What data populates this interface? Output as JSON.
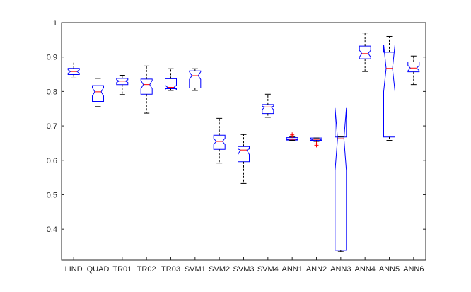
{
  "chart_data": {
    "type": "boxplot",
    "notched": true,
    "ylim": [
      0.31,
      1.0
    ],
    "yticks": [
      0.4,
      0.5,
      0.6,
      0.7,
      0.8,
      0.9,
      1
    ],
    "ytick_labels": [
      "0.4",
      "0.5",
      "0.6",
      "0.7",
      "0.8",
      "0.9",
      "1"
    ],
    "grid": false,
    "colors": {
      "box": "#0000ff",
      "median": "#ff0000",
      "whisker": "#000000",
      "outlier": "#ff0000"
    },
    "categories": [
      "LIND",
      "QUAD",
      "TR01",
      "TR02",
      "TR03",
      "SVM1",
      "SVM2",
      "SVM3",
      "SVM4",
      "ANN1",
      "ANN2",
      "ANN3",
      "ANN4",
      "ANN5",
      "ANN6"
    ],
    "boxes": [
      {
        "whisker_low": 0.839,
        "q1": 0.849,
        "notch_low": 0.853,
        "median": 0.858,
        "notch_high": 0.863,
        "q3": 0.867,
        "whisker_high": 0.886,
        "outliers": []
      },
      {
        "whisker_low": 0.756,
        "q1": 0.771,
        "notch_low": 0.787,
        "median": 0.799,
        "notch_high": 0.811,
        "q3": 0.817,
        "whisker_high": 0.838,
        "outliers": []
      },
      {
        "whisker_low": 0.791,
        "q1": 0.82,
        "notch_low": 0.826,
        "median": 0.83,
        "notch_high": 0.834,
        "q3": 0.838,
        "whisker_high": 0.847,
        "outliers": []
      },
      {
        "whisker_low": 0.737,
        "q1": 0.792,
        "notch_low": 0.808,
        "median": 0.82,
        "notch_high": 0.832,
        "q3": 0.836,
        "whisker_high": 0.874,
        "outliers": []
      },
      {
        "whisker_low": 0.803,
        "q1": 0.808,
        "notch_low": 0.806,
        "median": 0.812,
        "notch_high": 0.818,
        "q3": 0.837,
        "whisker_high": 0.866,
        "outliers": []
      },
      {
        "whisker_low": 0.803,
        "q1": 0.81,
        "notch_low": 0.835,
        "median": 0.846,
        "notch_high": 0.857,
        "q3": 0.86,
        "whisker_high": 0.866,
        "outliers": []
      },
      {
        "whisker_low": 0.592,
        "q1": 0.632,
        "notch_low": 0.646,
        "median": 0.655,
        "notch_high": 0.664,
        "q3": 0.673,
        "whisker_high": 0.722,
        "outliers": []
      },
      {
        "whisker_low": 0.533,
        "q1": 0.596,
        "notch_low": 0.617,
        "median": 0.63,
        "notch_high": 0.633,
        "q3": 0.64,
        "whisker_high": 0.675,
        "outliers": []
      },
      {
        "whisker_low": 0.725,
        "q1": 0.736,
        "notch_low": 0.747,
        "median": 0.755,
        "notch_high": 0.757,
        "q3": 0.762,
        "whisker_high": 0.792,
        "outliers": []
      },
      {
        "whisker_low": 0.658,
        "q1": 0.659,
        "notch_low": 0.66,
        "median": 0.661,
        "notch_high": 0.663,
        "q3": 0.666,
        "whisker_high": 0.668,
        "outliers": [
          0.671,
          0.675
        ]
      },
      {
        "whisker_low": 0.655,
        "q1": 0.658,
        "notch_low": 0.659,
        "median": 0.661,
        "notch_high": 0.662,
        "q3": 0.665,
        "whisker_high": 0.665,
        "outliers": [
          0.648,
          0.644
        ]
      },
      {
        "whisker_low": 0.335,
        "q1": 0.339,
        "notch_low": 0.57,
        "median": 0.663,
        "notch_high": 0.752,
        "q3": 0.668,
        "whisker_high": 0.668,
        "outliers": []
      },
      {
        "whisker_low": 0.858,
        "q1": 0.895,
        "notch_low": 0.9,
        "median": 0.91,
        "notch_high": 0.92,
        "q3": 0.932,
        "whisker_high": 0.97,
        "outliers": []
      },
      {
        "whisker_low": 0.658,
        "q1": 0.668,
        "notch_low": 0.8,
        "median": 0.867,
        "notch_high": 0.936,
        "q3": 0.914,
        "whisker_high": 0.96,
        "outliers": []
      },
      {
        "whisker_low": 0.82,
        "q1": 0.857,
        "notch_low": 0.86,
        "median": 0.868,
        "notch_high": 0.876,
        "q3": 0.886,
        "whisker_high": 0.903,
        "outliers": []
      }
    ]
  }
}
